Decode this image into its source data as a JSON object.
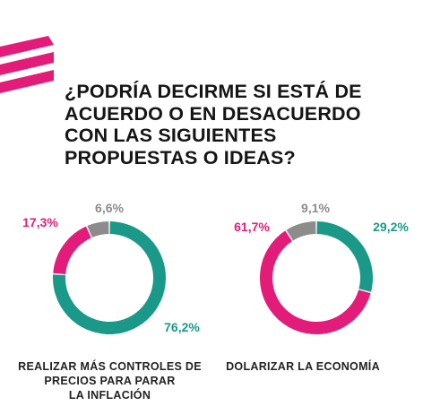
{
  "title_lines": [
    "¿PODRÍA DECIRME SI ESTÁ DE",
    "ACUERDO O EN DESACUERDO",
    "CON LAS SIGUIENTES",
    "PROPUESTAS O IDEAS?"
  ],
  "colors": {
    "agree": "#1a9988",
    "disagree": "#e31c79",
    "nsnc": "#8c8c8c"
  },
  "chart_data": [
    {
      "type": "pie",
      "title": "REALIZAR MÁS CONTROLES DE PRECIOS PARA PARAR LA INFLACIÓN",
      "title_lines": [
        "REALIZAR MÁS CONTROLES DE",
        "PRECIOS PARA PARAR",
        "LA INFLACIÓN"
      ],
      "donut": true,
      "series": [
        {
          "value": 76.2,
          "label": "76,2%",
          "color": "#1a9988"
        },
        {
          "value": 17.3,
          "label": "17,3%",
          "color": "#e31c79"
        },
        {
          "value": 6.6,
          "label": "6,6%",
          "color": "#8c8c8c"
        }
      ]
    },
    {
      "type": "pie",
      "title": "DOLARIZAR LA ECONOMÍA",
      "title_lines": [
        "DOLARIZAR LA ECONOMÍA"
      ],
      "donut": true,
      "series": [
        {
          "value": 29.2,
          "label": "29,2%",
          "color": "#1a9988"
        },
        {
          "value": 61.7,
          "label": "61,7%",
          "color": "#e31c79"
        },
        {
          "value": 9.1,
          "label": "9,1%",
          "color": "#8c8c8c"
        }
      ]
    }
  ]
}
